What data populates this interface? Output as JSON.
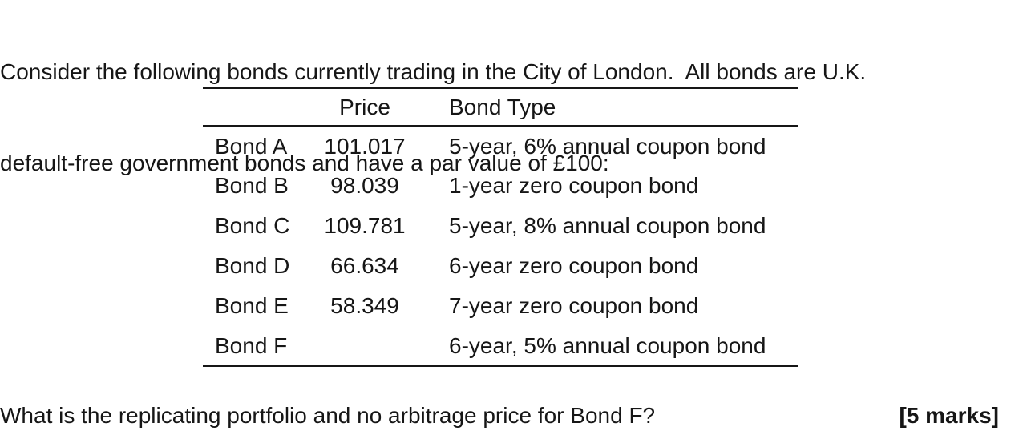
{
  "intro": {
    "line1": "Consider the following bonds currently trading in the City of London.  All bonds are U.K.",
    "line2": "default-free government bonds and have a par value of £100:"
  },
  "table": {
    "headers": {
      "bond": "",
      "price": "Price",
      "type": "Bond Type"
    },
    "rows": [
      {
        "bond": "Bond A",
        "price": "101.017",
        "type": "5-year, 6% annual coupon bond"
      },
      {
        "bond": "Bond B",
        "price": "98.039",
        "type": "1-year zero coupon bond"
      },
      {
        "bond": "Bond C",
        "price": "109.781",
        "type": "5-year, 8% annual coupon bond"
      },
      {
        "bond": "Bond D",
        "price": "66.634",
        "type": "6-year zero coupon bond"
      },
      {
        "bond": "Bond E",
        "price": "58.349",
        "type": "7-year zero coupon bond"
      },
      {
        "bond": "Bond F",
        "price": "",
        "type": "6-year, 5% annual coupon bond"
      }
    ]
  },
  "question": {
    "text": "What is the replicating portfolio and no arbitrage price for Bond F?",
    "marks": "[5 marks]"
  },
  "colors": {
    "text": "#161616",
    "background": "#ffffff",
    "rule": "#161616"
  }
}
